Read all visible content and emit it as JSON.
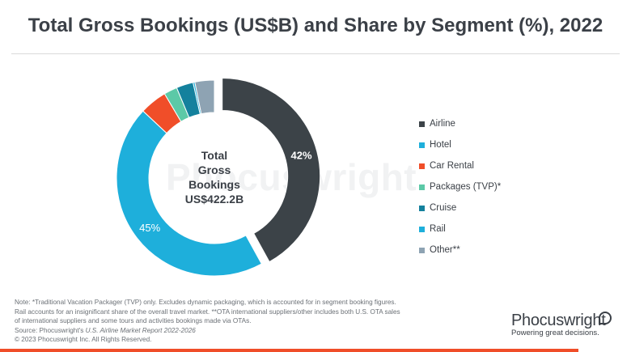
{
  "chart_data": {
    "type": "donut",
    "title": "Total Gross Bookings (US$B) and Share by Segment (%), 2022",
    "center_label": [
      "Total",
      "Gross",
      "Bookings",
      "US$422.2B"
    ],
    "series": [
      {
        "name": "Airline",
        "value": 42,
        "label": "42%",
        "color": "#3c4348"
      },
      {
        "name": "Hotel",
        "value": 45,
        "label": "45%",
        "color": "#1eafdb"
      },
      {
        "name": "Car Rental",
        "value": 4.5,
        "label": "",
        "color": "#f04e29"
      },
      {
        "name": "Packages (TVP)*",
        "value": 2.2,
        "label": "",
        "color": "#5cc9a7"
      },
      {
        "name": "Cruise",
        "value": 2.8,
        "label": "",
        "color": "#14819d"
      },
      {
        "name": "Rail",
        "value": 0.3,
        "label": "",
        "color": "#1eafdb"
      },
      {
        "name": "Other**",
        "value": 3.2,
        "label": "",
        "color": "#8ea3b3"
      }
    ],
    "legend_position": "right"
  },
  "footnote": {
    "lines": [
      "Note: *Traditional Vacation Packager (TVP) only. Excludes dynamic packaging, which is accounted for in segment booking figures.",
      "Rail accounts for an insignificant share of the overall travel market.  **OTA international suppliers/other includes both U.S. OTA sales",
      "of international suppliers and some tours and activities bookings made via OTAs."
    ],
    "source_prefix": "Source: Phocuswright's ",
    "source_title": "U.S. Airline Market Report 2022-2026",
    "copyright": "© 2023 Phocuswright Inc. All Rights Reserved."
  },
  "brand": {
    "name": "Phocuswright",
    "tagline": "Powering great decisions.",
    "watermark": "Phocuswright"
  }
}
